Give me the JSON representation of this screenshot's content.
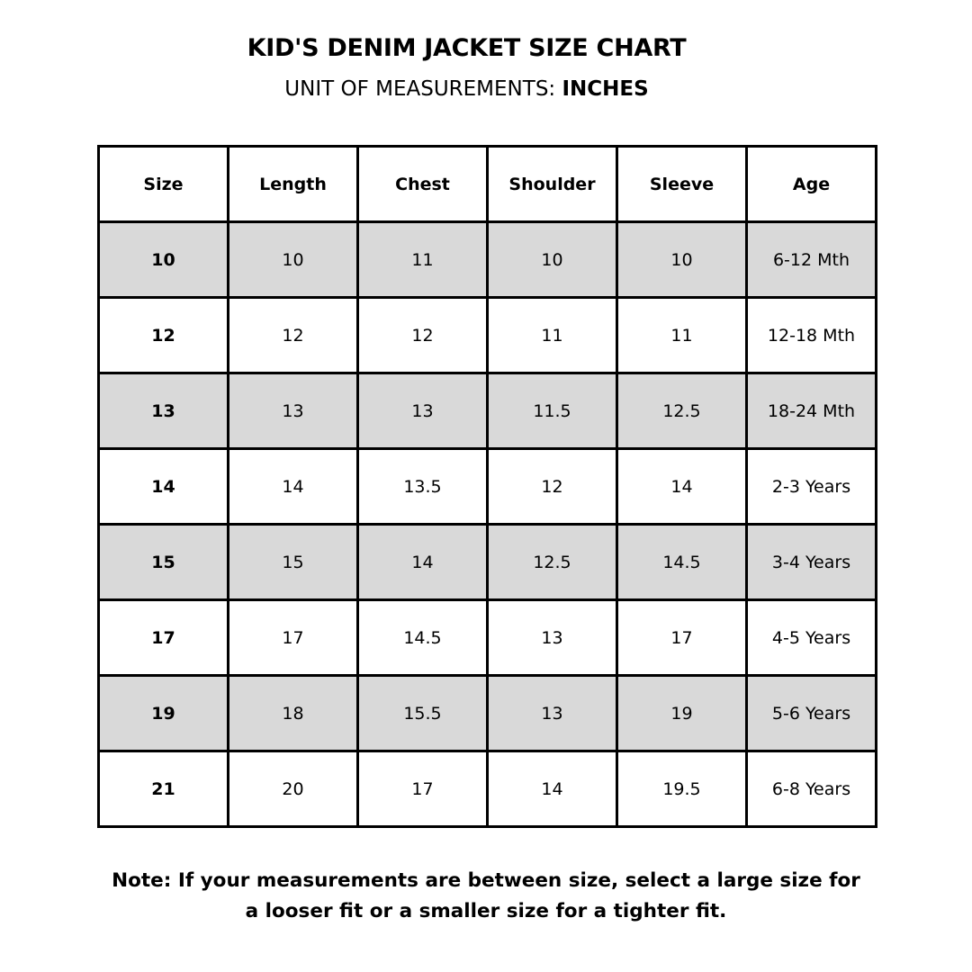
{
  "header": {
    "title": "KID'S DENIM JACKET SIZE CHART",
    "subtitle_prefix": "UNIT OF MEASUREMENTS: ",
    "subtitle_unit": "INCHES"
  },
  "table": {
    "columns": [
      "Size",
      "Length",
      "Chest",
      "Shoulder",
      "Sleeve",
      "Age"
    ],
    "shade_color": "#d9d9d9",
    "rows": [
      [
        "10",
        "10",
        "11",
        "10",
        "10",
        "6-12 Mth"
      ],
      [
        "12",
        "12",
        "12",
        "11",
        "11",
        "12-18 Mth"
      ],
      [
        "13",
        "13",
        "13",
        "11.5",
        "12.5",
        "18-24 Mth"
      ],
      [
        "14",
        "14",
        "13.5",
        "12",
        "14",
        "2-3 Years"
      ],
      [
        "15",
        "15",
        "14",
        "12.5",
        "14.5",
        "3-4 Years"
      ],
      [
        "17",
        "17",
        "14.5",
        "13",
        "17",
        "4-5 Years"
      ],
      [
        "19",
        "18",
        "15.5",
        "13",
        "19",
        "5-6 Years"
      ],
      [
        "21",
        "20",
        "17",
        "14",
        "19.5",
        "6-8 Years"
      ]
    ]
  },
  "note": {
    "line1": "Note: If your measurements are between size, select a large size for",
    "line2": "a looser fit or a smaller size for a tighter fit."
  }
}
